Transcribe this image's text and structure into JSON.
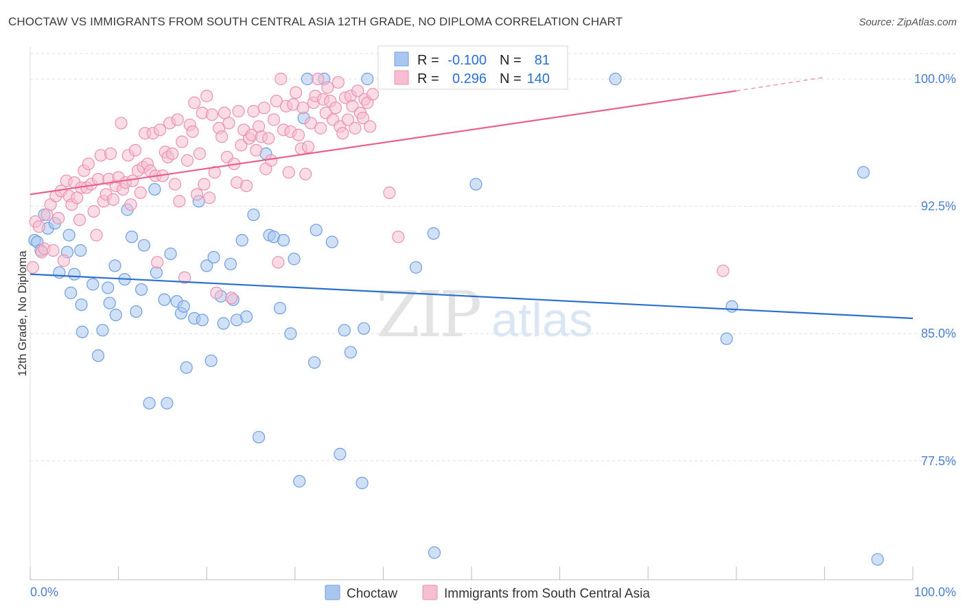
{
  "title": "CHOCTAW VS IMMIGRANTS FROM SOUTH CENTRAL ASIA 12TH GRADE, NO DIPLOMA CORRELATION CHART",
  "source": "Source: ZipAtlas.com",
  "watermark": {
    "zip": "ZIP",
    "atlas": "atlas"
  },
  "colors": {
    "choctaw_fill": "#a9c6ef",
    "choctaw_stroke": "#6d9ee3",
    "choctaw_line": "#2a6fd0",
    "immigrants_fill": "#f6bfd1",
    "immigrants_stroke": "#ee8fb0",
    "immigrants_line": "#e8608e",
    "tick_text": "#4a7fd0",
    "grid": "#dddddd"
  },
  "legend": {
    "rows": [
      {
        "r_label": "R =",
        "r_value": "-0.100",
        "n_label": "N =",
        "n_value": "81"
      },
      {
        "r_label": "R =",
        "r_value": "0.296",
        "n_label": "N =",
        "n_value": "140"
      }
    ]
  },
  "chart_data": {
    "type": "scatter",
    "xlabel": "",
    "ylabel": "12th Grade, No Diploma",
    "xlim": [
      0,
      100
    ],
    "ylim": [
      70.5,
      101.5
    ],
    "x_tick_labels": [
      "0.0%",
      "100.0%"
    ],
    "y_ticks": [
      77.5,
      85.0,
      92.5,
      100.0
    ],
    "y_tick_labels": [
      "77.5%",
      "85.0%",
      "92.5%",
      "100.0%"
    ],
    "grid": true,
    "legend_position": "bottom-center",
    "series": [
      {
        "name": "Choctaw",
        "color_key": "choctaw",
        "trend": {
          "x0": 0,
          "y0": 88.5,
          "x1": 100,
          "y1": 85.9
        },
        "points": [
          [
            0.5,
            90.5
          ],
          [
            0.8,
            90.4
          ],
          [
            1.2,
            89.9
          ],
          [
            1.6,
            92.0
          ],
          [
            2.0,
            91.2
          ],
          [
            2.8,
            91.5
          ],
          [
            3.3,
            88.6
          ],
          [
            4.2,
            89.8
          ],
          [
            4.4,
            90.8
          ],
          [
            4.6,
            87.4
          ],
          [
            5.0,
            88.5
          ],
          [
            5.7,
            89.9
          ],
          [
            5.8,
            86.7
          ],
          [
            5.9,
            85.1
          ],
          [
            7.1,
            87.9
          ],
          [
            7.7,
            83.7
          ],
          [
            8.2,
            85.2
          ],
          [
            8.8,
            87.7
          ],
          [
            9.0,
            86.8
          ],
          [
            9.6,
            89.0
          ],
          [
            9.7,
            86.1
          ],
          [
            10.7,
            88.2
          ],
          [
            11.0,
            92.3
          ],
          [
            11.5,
            90.7
          ],
          [
            12.0,
            86.3
          ],
          [
            12.6,
            87.6
          ],
          [
            12.9,
            90.2
          ],
          [
            13.5,
            80.9
          ],
          [
            14.1,
            93.5
          ],
          [
            14.3,
            88.6
          ],
          [
            15.2,
            87.0
          ],
          [
            15.5,
            80.9
          ],
          [
            15.9,
            89.7
          ],
          [
            16.6,
            86.9
          ],
          [
            17.1,
            86.2
          ],
          [
            17.4,
            86.6
          ],
          [
            17.7,
            83.0
          ],
          [
            18.6,
            85.9
          ],
          [
            19.1,
            92.8
          ],
          [
            19.5,
            85.8
          ],
          [
            20.0,
            89.0
          ],
          [
            20.5,
            83.4
          ],
          [
            20.8,
            89.5
          ],
          [
            21.6,
            87.2
          ],
          [
            21.9,
            85.6
          ],
          [
            22.7,
            89.1
          ],
          [
            23.0,
            87.0
          ],
          [
            23.4,
            85.8
          ],
          [
            24.0,
            90.5
          ],
          [
            24.5,
            86.0
          ],
          [
            25.3,
            92.0
          ],
          [
            25.9,
            78.9
          ],
          [
            26.7,
            95.6
          ],
          [
            27.1,
            90.8
          ],
          [
            27.6,
            90.7
          ],
          [
            28.3,
            86.5
          ],
          [
            28.7,
            90.5
          ],
          [
            29.5,
            85.0
          ],
          [
            29.9,
            89.4
          ],
          [
            30.5,
            76.3
          ],
          [
            31.0,
            97.7
          ],
          [
            31.4,
            100.0
          ],
          [
            32.2,
            83.3
          ],
          [
            32.4,
            91.1
          ],
          [
            33.3,
            100.0
          ],
          [
            34.2,
            90.4
          ],
          [
            35.1,
            77.9
          ],
          [
            35.6,
            85.2
          ],
          [
            36.3,
            83.9
          ],
          [
            37.6,
            76.2
          ],
          [
            37.8,
            85.3
          ],
          [
            38.2,
            100.0
          ],
          [
            43.7,
            88.9
          ],
          [
            45.7,
            90.9
          ],
          [
            45.8,
            72.1
          ],
          [
            50.5,
            93.8
          ],
          [
            66.3,
            100.0
          ],
          [
            78.9,
            84.7
          ],
          [
            79.5,
            86.6
          ],
          [
            94.4,
            94.5
          ],
          [
            96.0,
            71.7
          ]
        ]
      },
      {
        "name": "Immigrants from South Central Asia",
        "color_key": "immigrants",
        "trend": {
          "x0": 0,
          "y0": 93.2,
          "x1": 80,
          "y1": 99.3,
          "dashed_to_x": 90,
          "dashed_to_y": 100.1
        },
        "points": [
          [
            0.3,
            88.9
          ],
          [
            0.6,
            91.6
          ],
          [
            1.0,
            91.3
          ],
          [
            1.3,
            89.8
          ],
          [
            1.6,
            90.0
          ],
          [
            1.9,
            92.0
          ],
          [
            2.3,
            92.6
          ],
          [
            2.6,
            89.9
          ],
          [
            2.9,
            93.1
          ],
          [
            3.2,
            91.8
          ],
          [
            3.5,
            93.4
          ],
          [
            3.8,
            89.3
          ],
          [
            4.1,
            94.0
          ],
          [
            4.4,
            93.1
          ],
          [
            4.7,
            92.6
          ],
          [
            5.0,
            93.9
          ],
          [
            5.3,
            93.0
          ],
          [
            5.6,
            91.7
          ],
          [
            5.8,
            93.6
          ],
          [
            6.1,
            94.6
          ],
          [
            6.4,
            93.6
          ],
          [
            6.6,
            95.0
          ],
          [
            6.9,
            93.8
          ],
          [
            7.2,
            92.2
          ],
          [
            7.5,
            90.8
          ],
          [
            7.7,
            94.1
          ],
          [
            8.0,
            95.5
          ],
          [
            8.3,
            92.8
          ],
          [
            8.6,
            93.2
          ],
          [
            8.9,
            94.1
          ],
          [
            9.1,
            95.6
          ],
          [
            9.4,
            92.9
          ],
          [
            9.7,
            93.7
          ],
          [
            10.0,
            94.2
          ],
          [
            10.3,
            97.4
          ],
          [
            10.5,
            93.5
          ],
          [
            10.8,
            93.9
          ],
          [
            11.1,
            95.5
          ],
          [
            11.4,
            92.6
          ],
          [
            11.6,
            94.0
          ],
          [
            11.9,
            95.8
          ],
          [
            12.2,
            94.6
          ],
          [
            12.5,
            93.3
          ],
          [
            12.8,
            94.8
          ],
          [
            13.0,
            96.8
          ],
          [
            13.3,
            95.0
          ],
          [
            13.6,
            94.6
          ],
          [
            13.9,
            96.8
          ],
          [
            14.2,
            94.3
          ],
          [
            14.4,
            89.2
          ],
          [
            14.7,
            97.0
          ],
          [
            15.0,
            94.3
          ],
          [
            15.3,
            95.7
          ],
          [
            15.6,
            95.4
          ],
          [
            15.8,
            97.4
          ],
          [
            16.1,
            95.6
          ],
          [
            16.4,
            93.8
          ],
          [
            16.7,
            97.6
          ],
          [
            16.9,
            92.8
          ],
          [
            17.2,
            96.3
          ],
          [
            17.5,
            88.3
          ],
          [
            17.8,
            95.2
          ],
          [
            18.1,
            97.3
          ],
          [
            18.4,
            96.9
          ],
          [
            18.6,
            98.6
          ],
          [
            18.9,
            93.2
          ],
          [
            19.2,
            95.6
          ],
          [
            19.5,
            98.0
          ],
          [
            19.7,
            93.8
          ],
          [
            20.0,
            99.0
          ],
          [
            20.3,
            93.0
          ],
          [
            20.6,
            97.9
          ],
          [
            20.9,
            94.5
          ],
          [
            21.1,
            87.4
          ],
          [
            21.4,
            97.1
          ],
          [
            21.7,
            96.6
          ],
          [
            22.0,
            98.0
          ],
          [
            22.3,
            95.4
          ],
          [
            22.5,
            97.4
          ],
          [
            22.8,
            87.1
          ],
          [
            23.1,
            95.0
          ],
          [
            23.4,
            93.9
          ],
          [
            23.6,
            98.1
          ],
          [
            23.9,
            96.1
          ],
          [
            24.2,
            97.0
          ],
          [
            24.5,
            93.7
          ],
          [
            24.8,
            96.5
          ],
          [
            25.1,
            96.7
          ],
          [
            25.3,
            98.1
          ],
          [
            25.6,
            95.8
          ],
          [
            25.9,
            97.2
          ],
          [
            26.2,
            96.6
          ],
          [
            26.5,
            98.3
          ],
          [
            26.7,
            94.7
          ],
          [
            27.0,
            96.5
          ],
          [
            27.3,
            95.2
          ],
          [
            27.6,
            97.6
          ],
          [
            27.9,
            98.7
          ],
          [
            28.1,
            89.2
          ],
          [
            28.4,
            100.0
          ],
          [
            28.7,
            97.0
          ],
          [
            29.0,
            98.4
          ],
          [
            29.3,
            94.5
          ],
          [
            29.5,
            96.9
          ],
          [
            29.8,
            98.5
          ],
          [
            30.1,
            99.2
          ],
          [
            30.4,
            96.7
          ],
          [
            30.7,
            95.9
          ],
          [
            30.9,
            98.3
          ],
          [
            31.2,
            94.4
          ],
          [
            31.5,
            96.0
          ],
          [
            31.8,
            97.4
          ],
          [
            32.1,
            98.6
          ],
          [
            32.3,
            99.0
          ],
          [
            32.6,
            100.0
          ],
          [
            32.9,
            97.1
          ],
          [
            33.2,
            98.8
          ],
          [
            33.5,
            98.0
          ],
          [
            33.7,
            99.5
          ],
          [
            34.0,
            98.7
          ],
          [
            34.3,
            97.6
          ],
          [
            34.6,
            98.3
          ],
          [
            34.9,
            99.8
          ],
          [
            35.1,
            97.2
          ],
          [
            35.4,
            96.8
          ],
          [
            35.7,
            98.9
          ],
          [
            36.0,
            97.6
          ],
          [
            36.3,
            99.0
          ],
          [
            36.5,
            98.4
          ],
          [
            36.8,
            97.1
          ],
          [
            37.1,
            99.3
          ],
          [
            37.4,
            98.0
          ],
          [
            37.7,
            97.7
          ],
          [
            37.9,
            98.8
          ],
          [
            38.2,
            98.6
          ],
          [
            38.5,
            97.2
          ],
          [
            38.8,
            99.1
          ],
          [
            40.7,
            93.3
          ],
          [
            41.7,
            90.7
          ],
          [
            78.5,
            88.7
          ]
        ]
      }
    ]
  },
  "bottom_legend": [
    "Choctaw",
    "Immigrants from South Central Asia"
  ]
}
